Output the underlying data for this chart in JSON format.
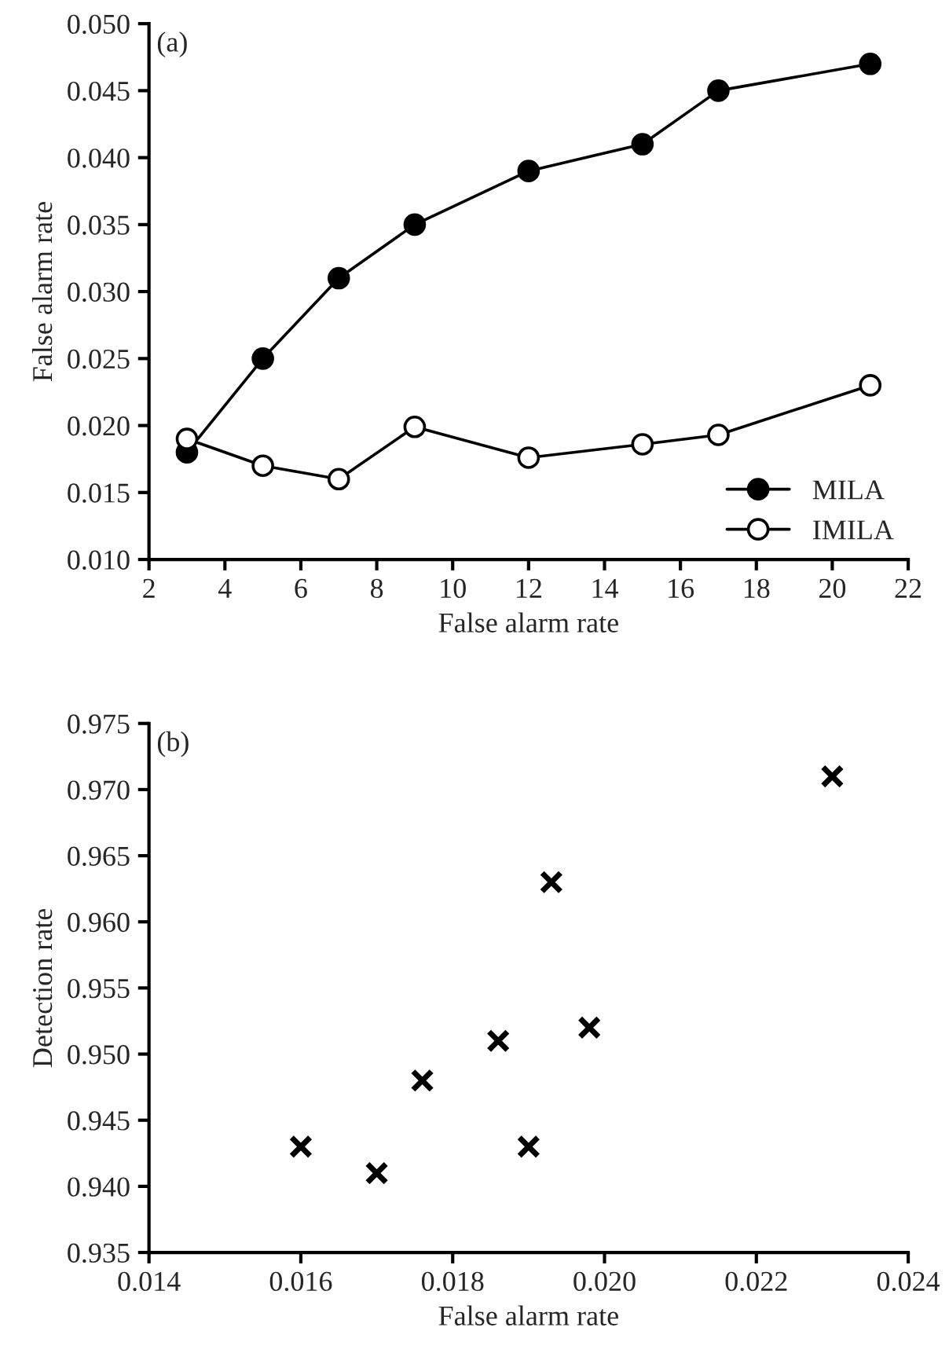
{
  "chart_data": [
    {
      "type": "line",
      "xlabel": "False alarm rate",
      "ylabel": "False alarm rate",
      "annotations": [
        "(a)"
      ],
      "x": [
        3,
        5,
        7,
        9,
        12,
        15,
        17,
        21
      ],
      "series": [
        {
          "name": "MILA",
          "color": "#000000",
          "values": [
            0.018,
            0.025,
            0.031,
            0.035,
            0.039,
            0.041,
            0.045,
            0.047
          ]
        },
        {
          "name": "IMILA",
          "color": "#000000",
          "values": [
            0.019,
            0.017,
            0.016,
            0.0199,
            0.0176,
            0.0186,
            0.0193,
            0.023
          ]
        }
      ],
      "xlim": [
        2,
        22
      ],
      "xticks": [
        2,
        4,
        6,
        8,
        10,
        12,
        14,
        16,
        18,
        20,
        22
      ],
      "ylim": [
        0.01,
        0.05
      ],
      "yticks": [
        {
          "value": 0.01,
          "label": "0.010"
        },
        {
          "value": 0.015,
          "label": "0.015"
        },
        {
          "value": 0.02,
          "label": "0.020"
        },
        {
          "value": 0.025,
          "label": "0.025"
        },
        {
          "value": 0.03,
          "label": "0.030"
        },
        {
          "value": 0.035,
          "label": "0.035"
        },
        {
          "value": 0.04,
          "label": "0.040"
        },
        {
          "value": 0.045,
          "label": "0.045"
        },
        {
          "value": 0.05,
          "label": "0.050"
        }
      ],
      "marker": "circle",
      "line_style": "solid",
      "legend": "bottom right",
      "grid": false
    },
    {
      "type": "scatter",
      "xlabel": "False alarm rate",
      "ylabel": "Detection rate",
      "annotations": [
        "(b)"
      ],
      "x": [
        0.016,
        0.017,
        0.0176,
        0.0186,
        0.019,
        0.0193,
        0.0198,
        0.023
      ],
      "series": [
        {
          "color": "#000000",
          "values": [
            0.943,
            0.941,
            0.948,
            0.951,
            0.943,
            0.963,
            0.952,
            0.971
          ]
        }
      ],
      "xlim": [
        0.014,
        0.024
      ],
      "xticks": [
        {
          "value": 0.014,
          "label": "0.014"
        },
        {
          "value": 0.016,
          "label": "0.016"
        },
        {
          "value": 0.018,
          "label": "0.018"
        },
        {
          "value": 0.02,
          "label": "0.020"
        },
        {
          "value": 0.022,
          "label": "0.022"
        },
        {
          "value": 0.024,
          "label": "0.024"
        }
      ],
      "ylim": [
        0.935,
        0.975
      ],
      "yticks": [
        {
          "value": 0.935,
          "label": "0.935"
        },
        {
          "value": 0.94,
          "label": "0.940"
        },
        {
          "value": 0.945,
          "label": "0.945"
        },
        {
          "value": 0.95,
          "label": "0.950"
        },
        {
          "value": 0.955,
          "label": "0.955"
        },
        {
          "value": 0.96,
          "label": "0.960"
        },
        {
          "value": 0.965,
          "label": "0.965"
        },
        {
          "value": 0.97,
          "label": "0.970"
        },
        {
          "value": 0.975,
          "label": "0.975"
        }
      ],
      "marker": "cross",
      "legend": false,
      "grid": false
    }
  ]
}
